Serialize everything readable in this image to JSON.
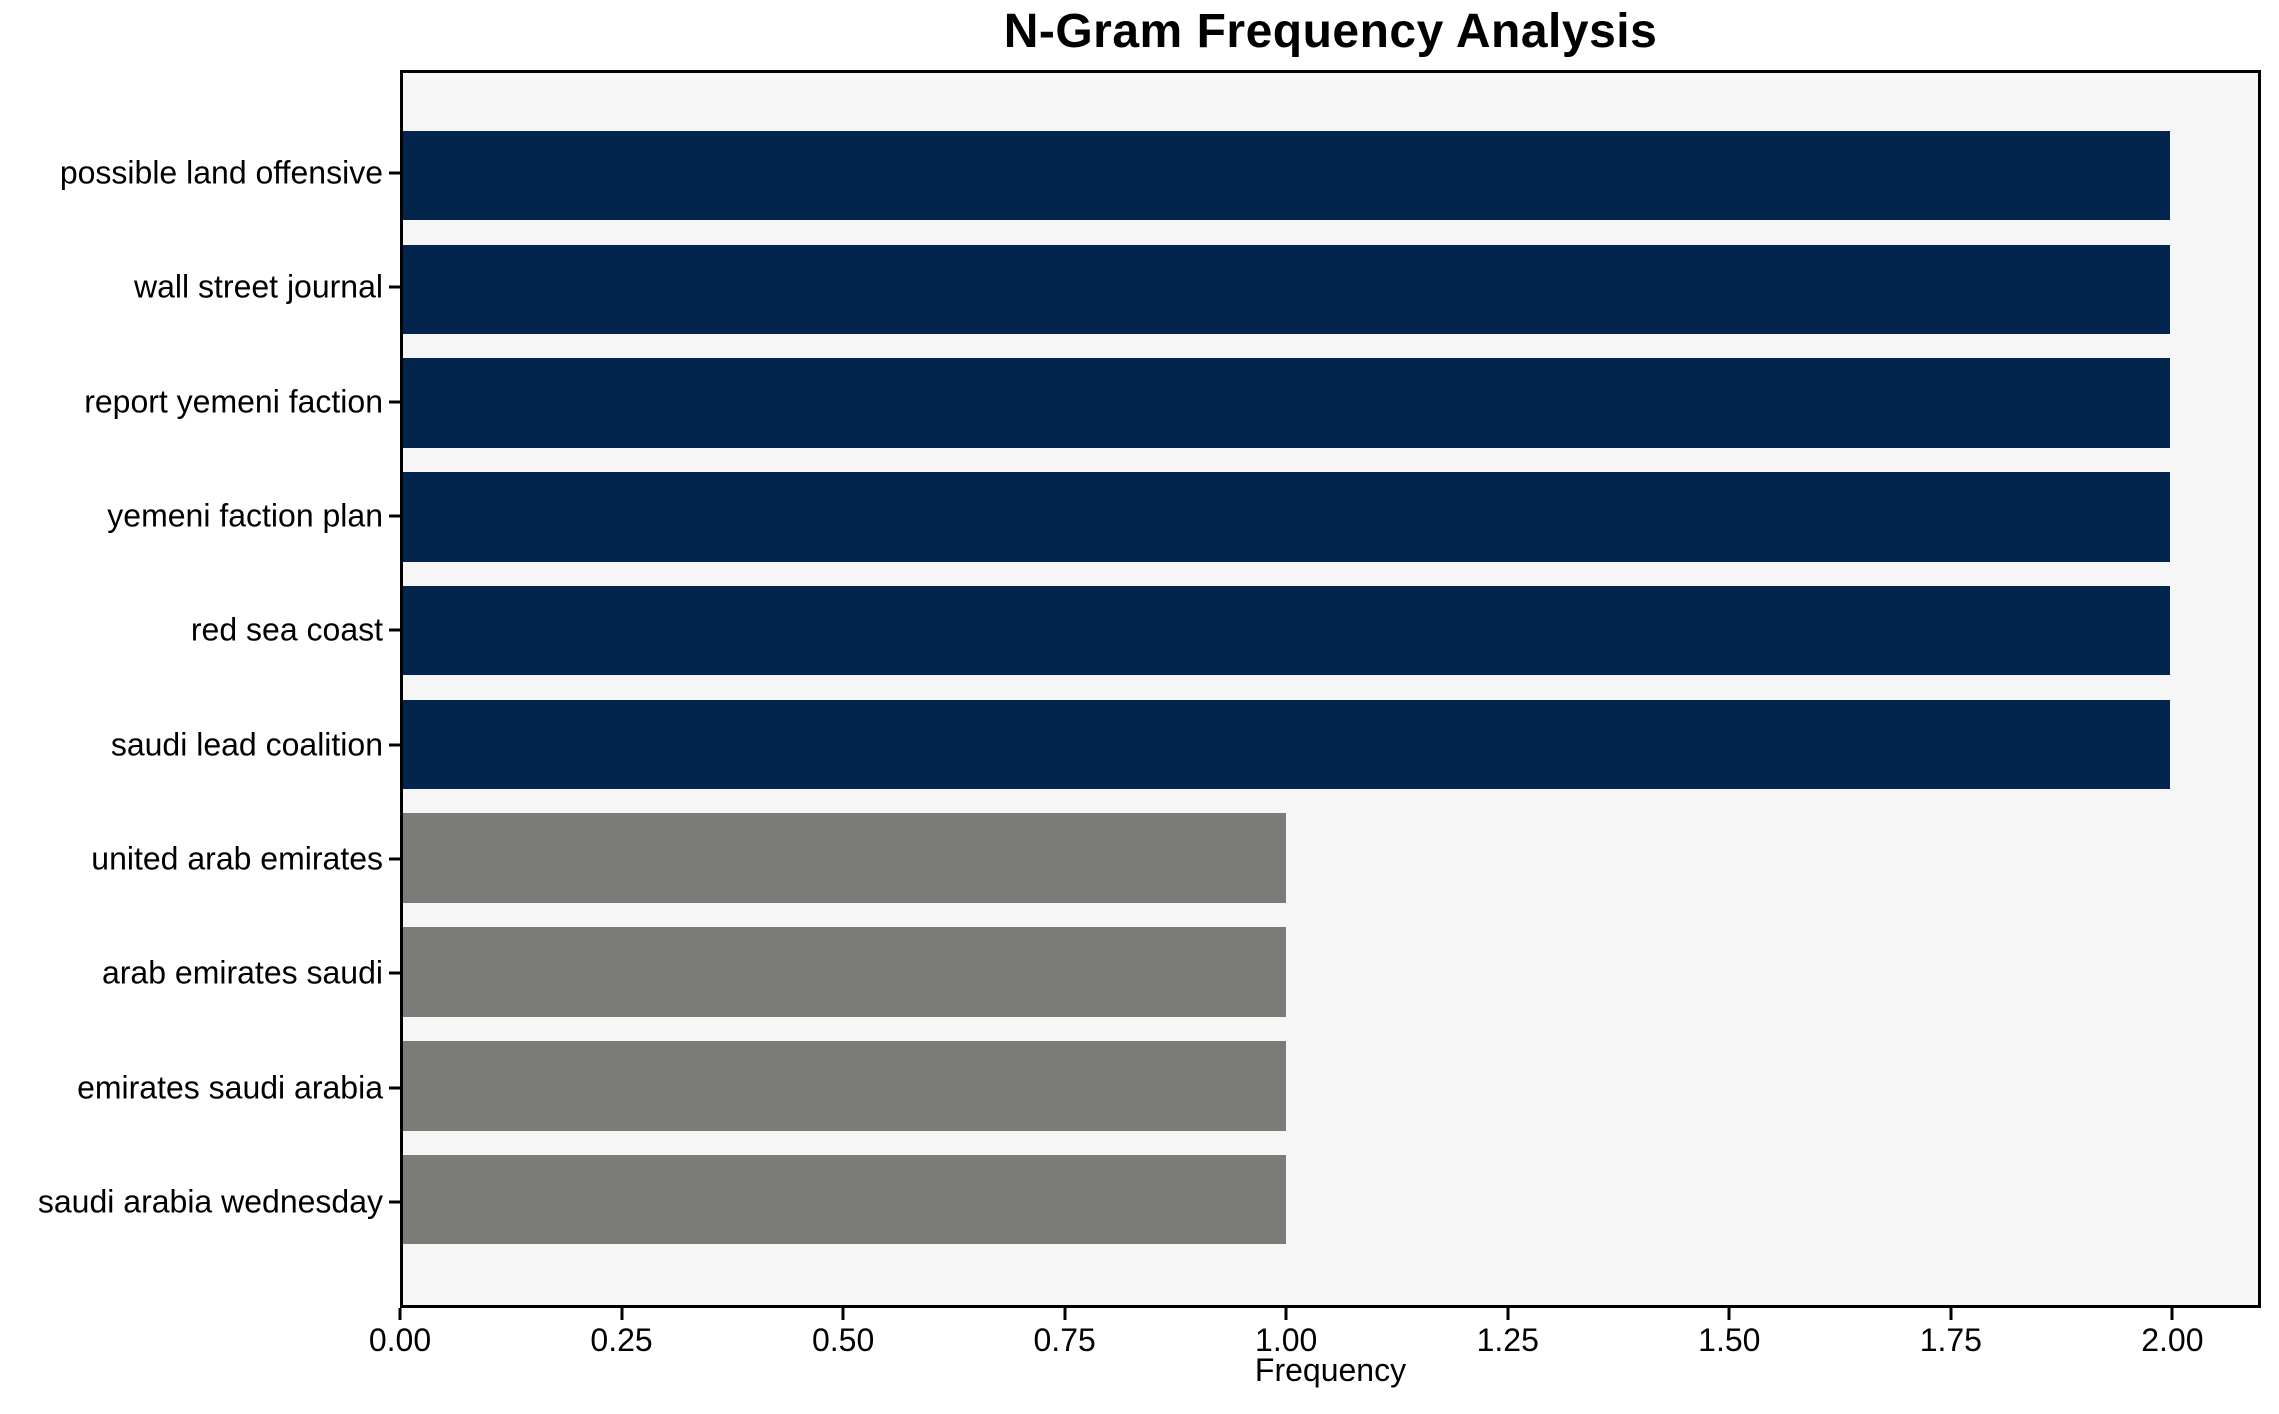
{
  "chart_data": {
    "type": "bar",
    "orientation": "horizontal",
    "title": "N-Gram Frequency Analysis",
    "xlabel": "Frequency",
    "ylabel": "",
    "categories": [
      "possible land offensive",
      "wall street journal",
      "report yemeni faction",
      "yemeni faction plan",
      "red sea coast",
      "saudi lead coalition",
      "united arab emirates",
      "arab emirates saudi",
      "emirates saudi arabia",
      "saudi arabia wednesday"
    ],
    "values": [
      2,
      2,
      2,
      2,
      2,
      2,
      1,
      1,
      1,
      1
    ],
    "bar_colors": [
      "#02244d",
      "#02244d",
      "#02244d",
      "#02244d",
      "#02244d",
      "#02244d",
      "#7b7b78",
      "#7b7b78",
      "#7b7b78",
      "#7b7b78"
    ],
    "xlim": [
      0,
      2.1
    ],
    "xticks": [
      {
        "value": 0.0,
        "label": "0.00"
      },
      {
        "value": 0.25,
        "label": "0.25"
      },
      {
        "value": 0.5,
        "label": "0.50"
      },
      {
        "value": 0.75,
        "label": "0.75"
      },
      {
        "value": 1.0,
        "label": "1.00"
      },
      {
        "value": 1.25,
        "label": "1.25"
      },
      {
        "value": 1.5,
        "label": "1.50"
      },
      {
        "value": 1.75,
        "label": "1.75"
      },
      {
        "value": 2.0,
        "label": "2.00"
      }
    ],
    "grid": false,
    "legend": "none",
    "colors": {
      "bar_high": "#02244d",
      "bar_low": "#7b7b78",
      "plot_background": "#f6f6f7",
      "figure_background": "#ffffff",
      "axis": "#000000",
      "text": "#000000"
    }
  }
}
